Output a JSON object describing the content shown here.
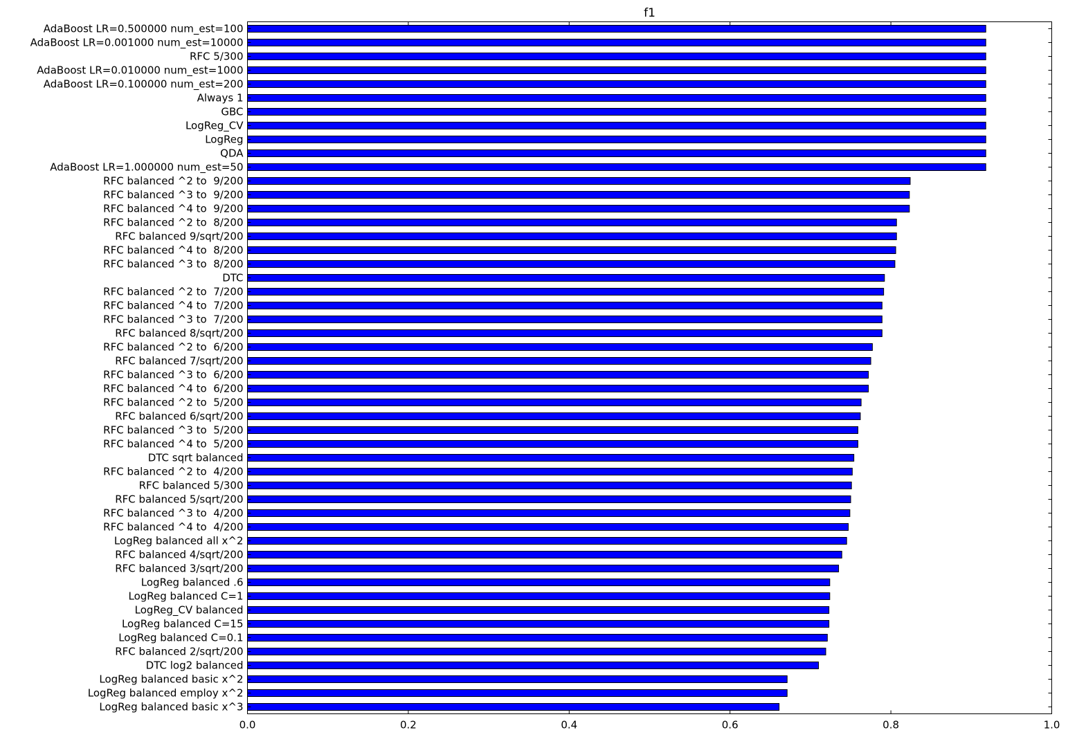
{
  "chart_data": {
    "type": "bar",
    "orientation": "horizontal",
    "title": "f1",
    "xlabel": "",
    "ylabel": "",
    "xlim": [
      0.0,
      1.0
    ],
    "x_ticks": [
      "0.0",
      "0.2",
      "0.4",
      "0.6",
      "0.8",
      "1.0"
    ],
    "grid": false,
    "legend": "none",
    "bar_color": "#0000ff",
    "categories": [
      "AdaBoost LR=0.500000 num_est=100",
      "AdaBoost LR=0.001000 num_est=10000",
      "RFC 5/300",
      "AdaBoost LR=0.010000 num_est=1000",
      "AdaBoost LR=0.100000 num_est=200",
      "Always 1",
      "GBC",
      "LogReg_CV",
      "LogReg",
      "QDA",
      "AdaBoost LR=1.000000 num_est=50",
      "RFC balanced ^2 to  9/200",
      "RFC balanced ^3 to  9/200",
      "RFC balanced ^4 to  9/200",
      "RFC balanced ^2 to  8/200",
      "RFC balanced 9/sqrt/200",
      "RFC balanced ^4 to  8/200",
      "RFC balanced ^3 to  8/200",
      "DTC",
      "RFC balanced ^2 to  7/200",
      "RFC balanced ^4 to  7/200",
      "RFC balanced ^3 to  7/200",
      "RFC balanced 8/sqrt/200",
      "RFC balanced ^2 to  6/200",
      "RFC balanced 7/sqrt/200",
      "RFC balanced ^3 to  6/200",
      "RFC balanced ^4 to  6/200",
      "RFC balanced ^2 to  5/200",
      "RFC balanced 6/sqrt/200",
      "RFC balanced ^3 to  5/200",
      "RFC balanced ^4 to  5/200",
      "DTC sqrt balanced",
      "RFC balanced ^2 to  4/200",
      "RFC balanced 5/300",
      "RFC balanced 5/sqrt/200",
      "RFC balanced ^3 to  4/200",
      "RFC balanced ^4 to  4/200",
      "LogReg balanced all x^2",
      "RFC balanced 4/sqrt/200",
      "RFC balanced 3/sqrt/200",
      "LogReg balanced .6",
      "LogReg balanced C=1",
      "LogReg_CV balanced",
      "LogReg balanced C=15",
      "LogReg balanced C=0.1",
      "RFC balanced 2/sqrt/200",
      "DTC log2 balanced",
      "LogReg balanced basic x^2",
      "LogReg balanced employ x^2",
      "LogReg balanced basic x^3"
    ],
    "values": [
      0.918,
      0.918,
      0.918,
      0.918,
      0.918,
      0.918,
      0.918,
      0.918,
      0.918,
      0.918,
      0.918,
      0.824,
      0.823,
      0.823,
      0.807,
      0.807,
      0.806,
      0.805,
      0.792,
      0.791,
      0.789,
      0.789,
      0.789,
      0.777,
      0.775,
      0.772,
      0.772,
      0.763,
      0.762,
      0.759,
      0.759,
      0.754,
      0.752,
      0.751,
      0.75,
      0.749,
      0.747,
      0.745,
      0.739,
      0.735,
      0.724,
      0.724,
      0.723,
      0.723,
      0.721,
      0.719,
      0.71,
      0.671,
      0.671,
      0.661
    ]
  }
}
